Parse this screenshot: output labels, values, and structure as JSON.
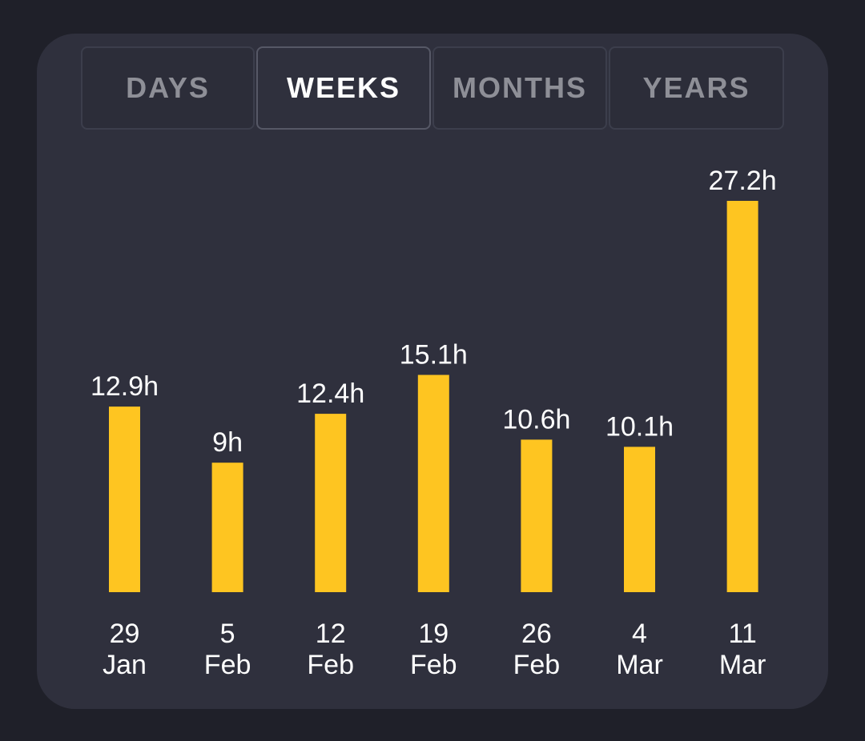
{
  "tabs": [
    {
      "label": "DAYS",
      "active": false
    },
    {
      "label": "WEEKS",
      "active": true
    },
    {
      "label": "MONTHS",
      "active": false
    },
    {
      "label": "YEARS",
      "active": false
    }
  ],
  "colors": {
    "bar": "#fec521",
    "background": "#1f2029",
    "card": "#2f303d",
    "text": "#ffffff",
    "inactive_tab_text": "#8e8f97"
  },
  "chart_data": {
    "type": "bar",
    "title": "",
    "xlabel": "",
    "ylabel": "",
    "categories": [
      [
        "29",
        "Jan"
      ],
      [
        "5",
        "Feb"
      ],
      [
        "12",
        "Feb"
      ],
      [
        "19",
        "Feb"
      ],
      [
        "26",
        "Feb"
      ],
      [
        "4",
        "Mar"
      ],
      [
        "11",
        "Mar"
      ]
    ],
    "values": [
      12.9,
      9,
      12.4,
      15.1,
      10.6,
      10.1,
      27.2
    ],
    "value_labels": [
      "12.9h",
      "9h",
      "12.4h",
      "15.1h",
      "10.6h",
      "10.1h",
      "27.2h"
    ],
    "ylim": [
      0,
      27.2
    ],
    "grid": false,
    "legend": "none"
  }
}
